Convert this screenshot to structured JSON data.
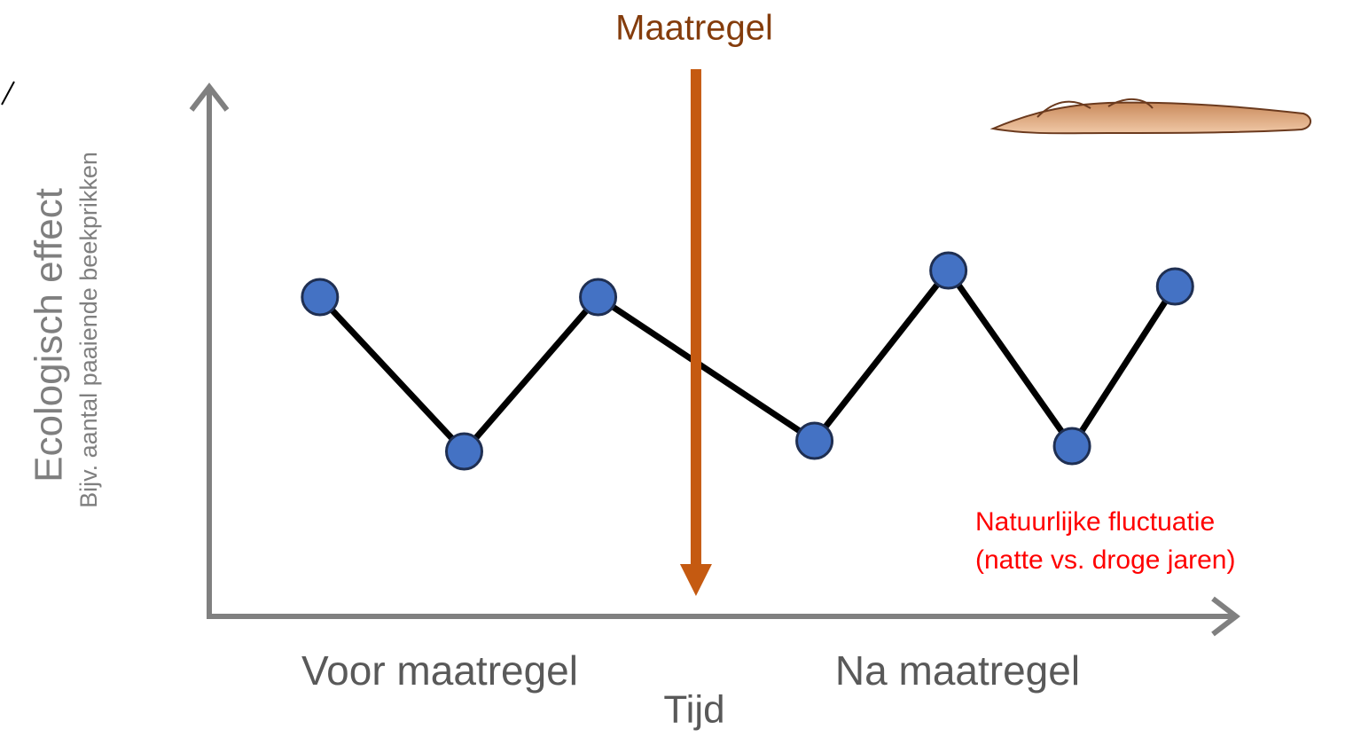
{
  "chart_data": {
    "type": "line",
    "title": "Maatregel",
    "y_label": "Ecologisch effect",
    "y_sublabel": "Bijv. aantal paaiende beekprikken",
    "x_label": "Tijd",
    "period_labels": [
      "Voor maatregel",
      "Na maatregel"
    ],
    "annotation": [
      "Natuurlijke fluctuatie",
      "(natte vs. droge jaren)"
    ],
    "x": [
      1.1,
      2.5,
      3.8,
      5.9,
      7.2,
      8.4,
      9.4
    ],
    "values": [
      6.0,
      3.1,
      6.0,
      3.3,
      6.5,
      3.2,
      6.2
    ],
    "intervention_x": 4.75,
    "xlim": [
      0,
      10
    ],
    "ylim": [
      0,
      10
    ],
    "color": "#4472c4",
    "line_color": "#000000",
    "intervention_color": "#c55a11"
  }
}
